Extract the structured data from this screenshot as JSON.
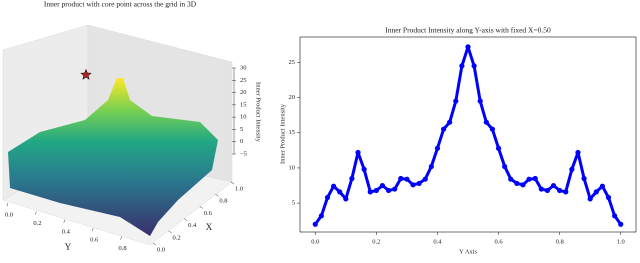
{
  "chart_data": [
    {
      "type": "surface3d",
      "title": "Inner product with core point across the grid in 3D",
      "xlabel": "X",
      "ylabel": "Y",
      "zlabel": "Inner Product Intensity",
      "xlim": [
        0,
        1
      ],
      "ylim": [
        0,
        1
      ],
      "zlim": [
        -5,
        30
      ],
      "xticks": [
        {
          "value": 0,
          "label": "0.0"
        },
        {
          "value": 0.2,
          "label": "0.2"
        },
        {
          "value": 0.4,
          "label": "0.4"
        },
        {
          "value": 0.6,
          "label": "0.6"
        },
        {
          "value": 0.8,
          "label": "0.8"
        },
        {
          "value": 1,
          "label": "1.0"
        }
      ],
      "yticks": [
        {
          "value": 0,
          "label": "0.0"
        },
        {
          "value": 0.2,
          "label": "0.2"
        },
        {
          "value": 0.4,
          "label": "0.4"
        },
        {
          "value": 0.6,
          "label": "0.6"
        },
        {
          "value": 0.8,
          "label": "0.8"
        }
      ],
      "zticks": [
        {
          "value": -5,
          "label": "−5"
        },
        0,
        5,
        10,
        15,
        20,
        25,
        30
      ],
      "peak": {
        "x": 0.5,
        "y": 0.5,
        "z": 27.2
      },
      "peak_color": "#b22222"
    },
    {
      "type": "line",
      "title": "Inner Product Intensity along Y-axis with fixed X=0.50",
      "xlabel": "Y Axis",
      "ylabel": "Inner Product Intensity",
      "color": "#0000ff",
      "xlim": [
        -0.05,
        1.05
      ],
      "ylim": [
        0.9,
        28.6
      ],
      "xticks": [
        {
          "value": 0,
          "label": "0.0"
        },
        {
          "value": 0.2,
          "label": "0.2"
        },
        {
          "value": 0.4,
          "label": "0.4"
        },
        {
          "value": 0.6,
          "label": "0.6"
        },
        {
          "value": 0.8,
          "label": "0.8"
        },
        {
          "value": 1,
          "label": "1.0"
        }
      ],
      "yticks": [
        5,
        10,
        15,
        20,
        25
      ],
      "x": [
        0,
        0.02,
        0.04,
        0.06,
        0.08,
        0.1,
        0.12,
        0.14,
        0.16,
        0.18,
        0.2,
        0.22,
        0.24,
        0.26,
        0.28,
        0.3,
        0.32,
        0.34,
        0.36,
        0.38,
        0.4,
        0.42,
        0.44,
        0.46,
        0.48,
        0.5,
        0.52,
        0.54,
        0.56,
        0.58,
        0.6,
        0.62,
        0.64,
        0.66,
        0.68,
        0.7,
        0.72,
        0.74,
        0.76,
        0.78,
        0.8,
        0.82,
        0.84,
        0.86,
        0.88,
        0.9,
        0.92,
        0.94,
        0.96,
        0.98,
        1
      ],
      "values": [
        2.0,
        3.2,
        5.8,
        7.4,
        6.6,
        5.6,
        8.5,
        12.2,
        9.8,
        6.6,
        6.8,
        7.5,
        6.8,
        7.0,
        8.5,
        8.4,
        7.6,
        7.8,
        8.4,
        10.2,
        12.8,
        15.5,
        16.5,
        19.5,
        24.5,
        27.2,
        24.5,
        19.5,
        16.5,
        15.5,
        12.8,
        10.2,
        8.4,
        7.8,
        7.6,
        8.4,
        8.5,
        7.0,
        6.8,
        7.5,
        6.8,
        6.6,
        9.8,
        12.2,
        8.5,
        5.6,
        6.6,
        7.4,
        5.8,
        3.2,
        2.0
      ]
    }
  ]
}
